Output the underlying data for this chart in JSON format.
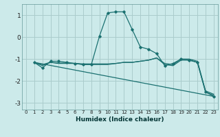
{
  "xlabel": "Humidex (Indice chaleur)",
  "bg_color": "#cceaea",
  "grid_color": "#aacccc",
  "line_color": "#1a7070",
  "xlim": [
    -0.5,
    23.5
  ],
  "ylim": [
    -3.3,
    1.5
  ],
  "yticks": [
    -3,
    -2,
    -1,
    0,
    1
  ],
  "xticks": [
    0,
    1,
    2,
    3,
    4,
    5,
    6,
    7,
    8,
    9,
    10,
    11,
    12,
    13,
    14,
    15,
    16,
    17,
    18,
    19,
    20,
    21,
    22,
    23
  ],
  "line1_x": [
    1,
    2,
    3,
    4,
    5,
    6,
    7,
    8,
    9,
    10,
    11,
    12,
    13,
    14,
    15,
    16,
    17,
    18,
    19,
    20,
    21,
    22,
    23
  ],
  "line1_y": [
    -1.15,
    -1.4,
    -1.1,
    -1.1,
    -1.15,
    -1.2,
    -1.25,
    -1.25,
    0.05,
    1.1,
    1.15,
    1.15,
    0.35,
    -0.45,
    -0.55,
    -0.75,
    -1.3,
    -1.2,
    -1.0,
    -1.05,
    -1.15,
    -2.5,
    -2.7
  ],
  "line2_x": [
    1,
    2,
    3,
    4,
    5,
    6,
    7,
    8,
    9,
    10,
    11,
    12,
    13,
    14,
    15,
    16,
    17,
    18,
    19,
    20,
    21,
    22,
    23
  ],
  "line2_y": [
    -1.15,
    -1.3,
    -1.15,
    -1.2,
    -1.2,
    -1.2,
    -1.25,
    -1.25,
    -1.25,
    -1.25,
    -1.2,
    -1.15,
    -1.15,
    -1.1,
    -1.05,
    -0.95,
    -1.25,
    -1.3,
    -1.05,
    -1.05,
    -1.15,
    -2.5,
    -2.65
  ],
  "line3_x": [
    1,
    2,
    3,
    4,
    5,
    6,
    7,
    8,
    9,
    10,
    11,
    12,
    13,
    14,
    15,
    16,
    17,
    18,
    19,
    20,
    21,
    22,
    23
  ],
  "line3_y": [
    -1.15,
    -1.25,
    -1.15,
    -1.18,
    -1.18,
    -1.2,
    -1.22,
    -1.22,
    -1.22,
    -1.22,
    -1.2,
    -1.15,
    -1.15,
    -1.1,
    -1.05,
    -0.95,
    -1.2,
    -1.25,
    -1.0,
    -1.0,
    -1.1,
    -2.45,
    -2.6
  ],
  "line4_x": [
    1,
    23
  ],
  "line4_y": [
    -1.15,
    -2.7
  ],
  "marker_x": [
    1,
    2,
    3,
    4,
    5,
    6,
    7,
    8,
    9,
    10,
    11,
    12,
    13,
    14,
    15,
    16,
    17,
    18,
    19,
    20,
    21,
    22,
    23
  ],
  "marker_y": [
    -1.15,
    -1.4,
    -1.1,
    -1.1,
    -1.15,
    -1.2,
    -1.25,
    -1.25,
    0.05,
    1.1,
    1.15,
    1.15,
    0.35,
    -0.45,
    -0.55,
    -0.75,
    -1.3,
    -1.2,
    -1.0,
    -1.05,
    -1.15,
    -2.5,
    -2.7
  ]
}
